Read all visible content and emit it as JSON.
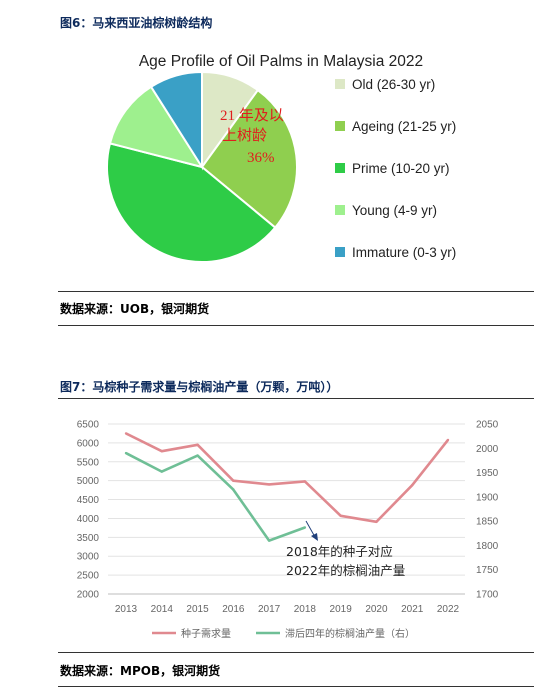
{
  "figure1": {
    "caption": "图6：马来西亚油棕树龄结构",
    "source": "数据来源：UOB，银河期货"
  },
  "figure2": {
    "caption": "图7：马棕种子需求量与棕榈油产量（万颗，万吨））",
    "source": "数据来源：MPOB，银河期货"
  },
  "chart_data": [
    {
      "type": "pie",
      "title": "Age Profile of Oil Palms in Malaysia 2022",
      "slices": [
        {
          "label": "Old (26-30 yr)",
          "value": 10,
          "color": "#dde8c6"
        },
        {
          "label": "Ageing (21-25 yr)",
          "value": 26,
          "color": "#8fcf4f"
        },
        {
          "label": "Prime (10-20 yr)",
          "value": 43,
          "color": "#2ecc47"
        },
        {
          "label": "Young (4-9 yr)",
          "value": 12,
          "color": "#9ef08e"
        },
        {
          "label": "Immature (0-3 yr)",
          "value": 9,
          "color": "#3aa0c6"
        }
      ],
      "annotation": {
        "line1": "21 年及以",
        "line2": "上树龄",
        "line3": "36%",
        "color": "#e01e1e"
      },
      "legend_position": "right"
    },
    {
      "type": "line",
      "categories": [
        "2013",
        "2014",
        "2015",
        "2016",
        "2017",
        "2018",
        "2019",
        "2020",
        "2021",
        "2022"
      ],
      "y_left": {
        "range": [
          2000,
          6500
        ],
        "ticks": [
          "2000",
          "2500",
          "3000",
          "3500",
          "4000",
          "4500",
          "5000",
          "5500",
          "6000",
          "6500"
        ]
      },
      "y_right": {
        "range": [
          1700,
          2050
        ],
        "ticks": [
          "1700",
          "1750",
          "1800",
          "1850",
          "1900",
          "1950",
          "2000",
          "2050"
        ]
      },
      "series": [
        {
          "name": "种子需求量",
          "axis": "left",
          "color": "#e0898f",
          "values": [
            6250,
            5780,
            5950,
            5000,
            4900,
            4980,
            4070,
            3910,
            4880,
            6080
          ]
        },
        {
          "name": "滞后四年的棕榈油产量（右）",
          "axis": "right",
          "color": "#6fbf96",
          "values": [
            1990,
            1952,
            1985,
            1915,
            1810,
            1837,
            null,
            null,
            null,
            null
          ]
        }
      ],
      "annotation": {
        "line1": "2018年的种子对应",
        "line2": "2022年的棕榈油产量"
      },
      "grid": "horizontal",
      "legend_position": "bottom"
    }
  ]
}
